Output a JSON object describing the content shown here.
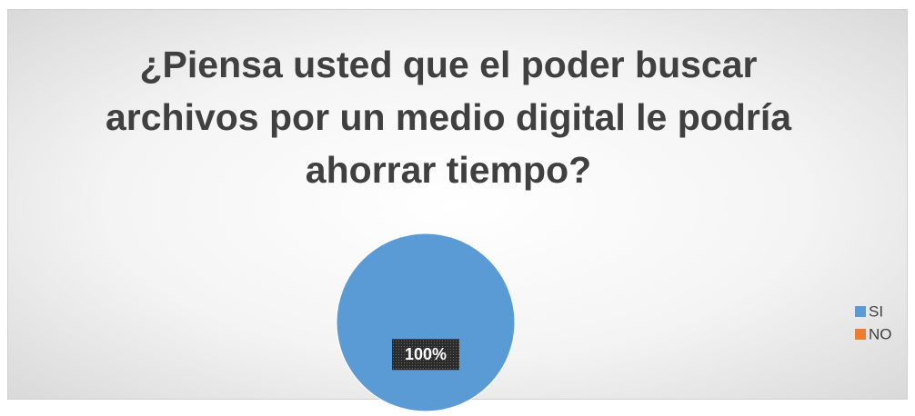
{
  "chart_data": {
    "type": "pie",
    "title": "¿Piensa usted que el poder buscar archivos por un medio digital le podría ahorrar tiempo?",
    "categories": [
      "SI",
      "NO"
    ],
    "values": [
      100,
      0
    ],
    "value_labels": [
      "100%",
      null
    ],
    "colors": [
      "#5b9bd5",
      "#ed7d31"
    ],
    "legend": "right"
  }
}
